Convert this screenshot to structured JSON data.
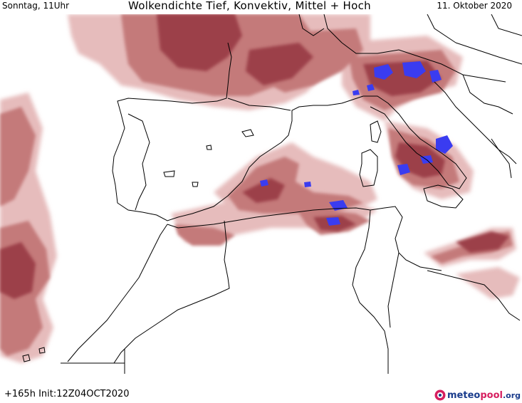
{
  "header": {
    "left": "Sonntag, 11Uhr",
    "center": "Wolkendichte  Tief, Konvektiv, Mittel + Hoch",
    "right": "11. Oktober 2020"
  },
  "footer": {
    "init": "+165h  Init:12Z04OCT2020",
    "logo_part1": "meteo",
    "logo_part2": "pool",
    "logo_part3": ".org"
  },
  "legend_colors": {
    "cloud_light": "#e9c2c2",
    "cloud_medium": "#c97f7f",
    "cloud_dense": "#a3474f",
    "cloud_very_dense": "#8a2f3a",
    "convective": "#3a3cf0",
    "coastline": "#000000"
  }
}
